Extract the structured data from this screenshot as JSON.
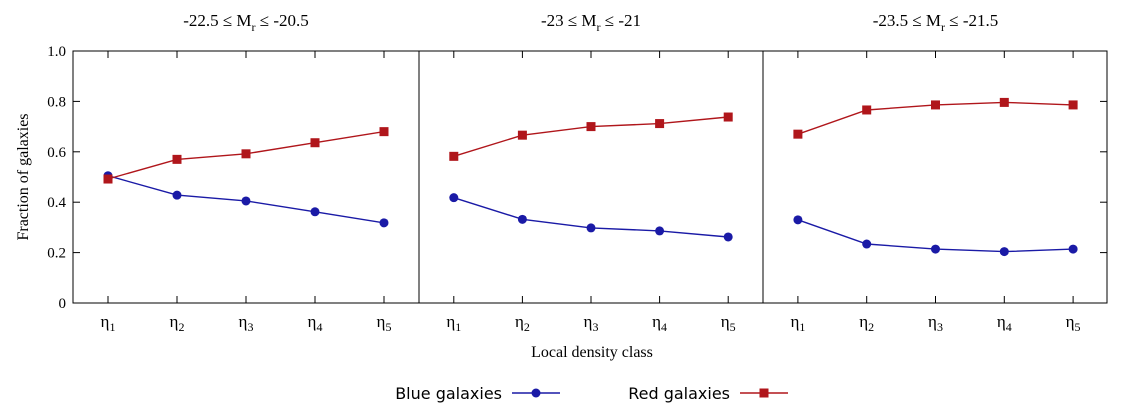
{
  "chart_data": {
    "type": "line",
    "ylabel": "Fraction of galaxies",
    "xlabel": "Local density class",
    "ylim": [
      0,
      1.0
    ],
    "yticks": [
      "0",
      "0.2",
      "0.4",
      "0.6",
      "0.8",
      "1.0"
    ],
    "ytick_values": [
      0,
      0.2,
      0.4,
      0.6,
      0.8,
      1.0
    ],
    "categories": [
      {
        "base": "η",
        "sub": "1"
      },
      {
        "base": "η",
        "sub": "2"
      },
      {
        "base": "η",
        "sub": "3"
      },
      {
        "base": "η",
        "sub": "4"
      },
      {
        "base": "η",
        "sub": "5"
      }
    ],
    "panels": [
      {
        "title": {
          "pre": "-22.5 ≤ M",
          "sub": "r",
          "post": " ≤ -20.5"
        },
        "series": [
          {
            "name": "Blue galaxies",
            "values": [
              0.505,
              0.428,
              0.405,
              0.362,
              0.318
            ]
          },
          {
            "name": "Red galaxies",
            "values": [
              0.492,
              0.57,
              0.592,
              0.636,
              0.68
            ]
          }
        ]
      },
      {
        "title": {
          "pre": "-23 ≤ M",
          "sub": "r",
          "post": " ≤ -21"
        },
        "series": [
          {
            "name": "Blue galaxies",
            "values": [
              0.418,
              0.332,
              0.298,
              0.286,
              0.262
            ]
          },
          {
            "name": "Red galaxies",
            "values": [
              0.582,
              0.666,
              0.7,
              0.712,
              0.738
            ]
          }
        ]
      },
      {
        "title": {
          "pre": "-23.5 ≤ M",
          "sub": "r",
          "post": " ≤ -21.5"
        },
        "series": [
          {
            "name": "Blue galaxies",
            "values": [
              0.33,
              0.234,
              0.214,
              0.204,
              0.214
            ]
          },
          {
            "name": "Red galaxies",
            "values": [
              0.67,
              0.766,
              0.786,
              0.796,
              0.786
            ]
          }
        ]
      }
    ],
    "legend": [
      {
        "name": "Blue galaxies",
        "color": "#1a1aa6",
        "marker": "circle"
      },
      {
        "name": "Red galaxies",
        "color": "#b0161b",
        "marker": "square"
      }
    ],
    "legend_position": "bottom-center"
  }
}
